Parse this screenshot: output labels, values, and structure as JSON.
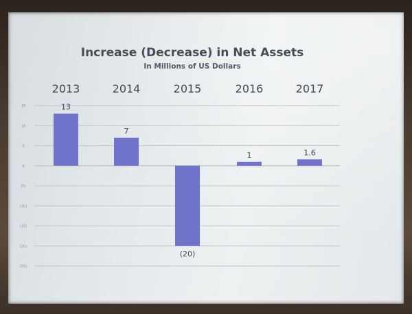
{
  "chart_data": {
    "type": "bar",
    "title": "Increase (Decrease) in Net Assets",
    "subtitle": "In Millions of US Dollars",
    "categories": [
      "2013",
      "2014",
      "2015",
      "2016",
      "2017"
    ],
    "values": [
      13,
      7,
      -20,
      1,
      1.6
    ],
    "data_labels": [
      "13",
      "7",
      "(20)",
      "1",
      "1.6"
    ],
    "ylim": [
      -25,
      15
    ],
    "y_ticks": [
      15,
      10,
      5,
      0,
      -5,
      -10,
      -15,
      -20,
      -25
    ],
    "y_tick_labels": [
      "15",
      "10",
      "5",
      "0",
      "(5)",
      "(10)",
      "(15)",
      "(20)",
      "(25)"
    ],
    "grid": true,
    "legend": "none",
    "colors": {
      "bar": "#6f73c9",
      "grid": "#bfc4c8",
      "text": "#444a55"
    }
  }
}
